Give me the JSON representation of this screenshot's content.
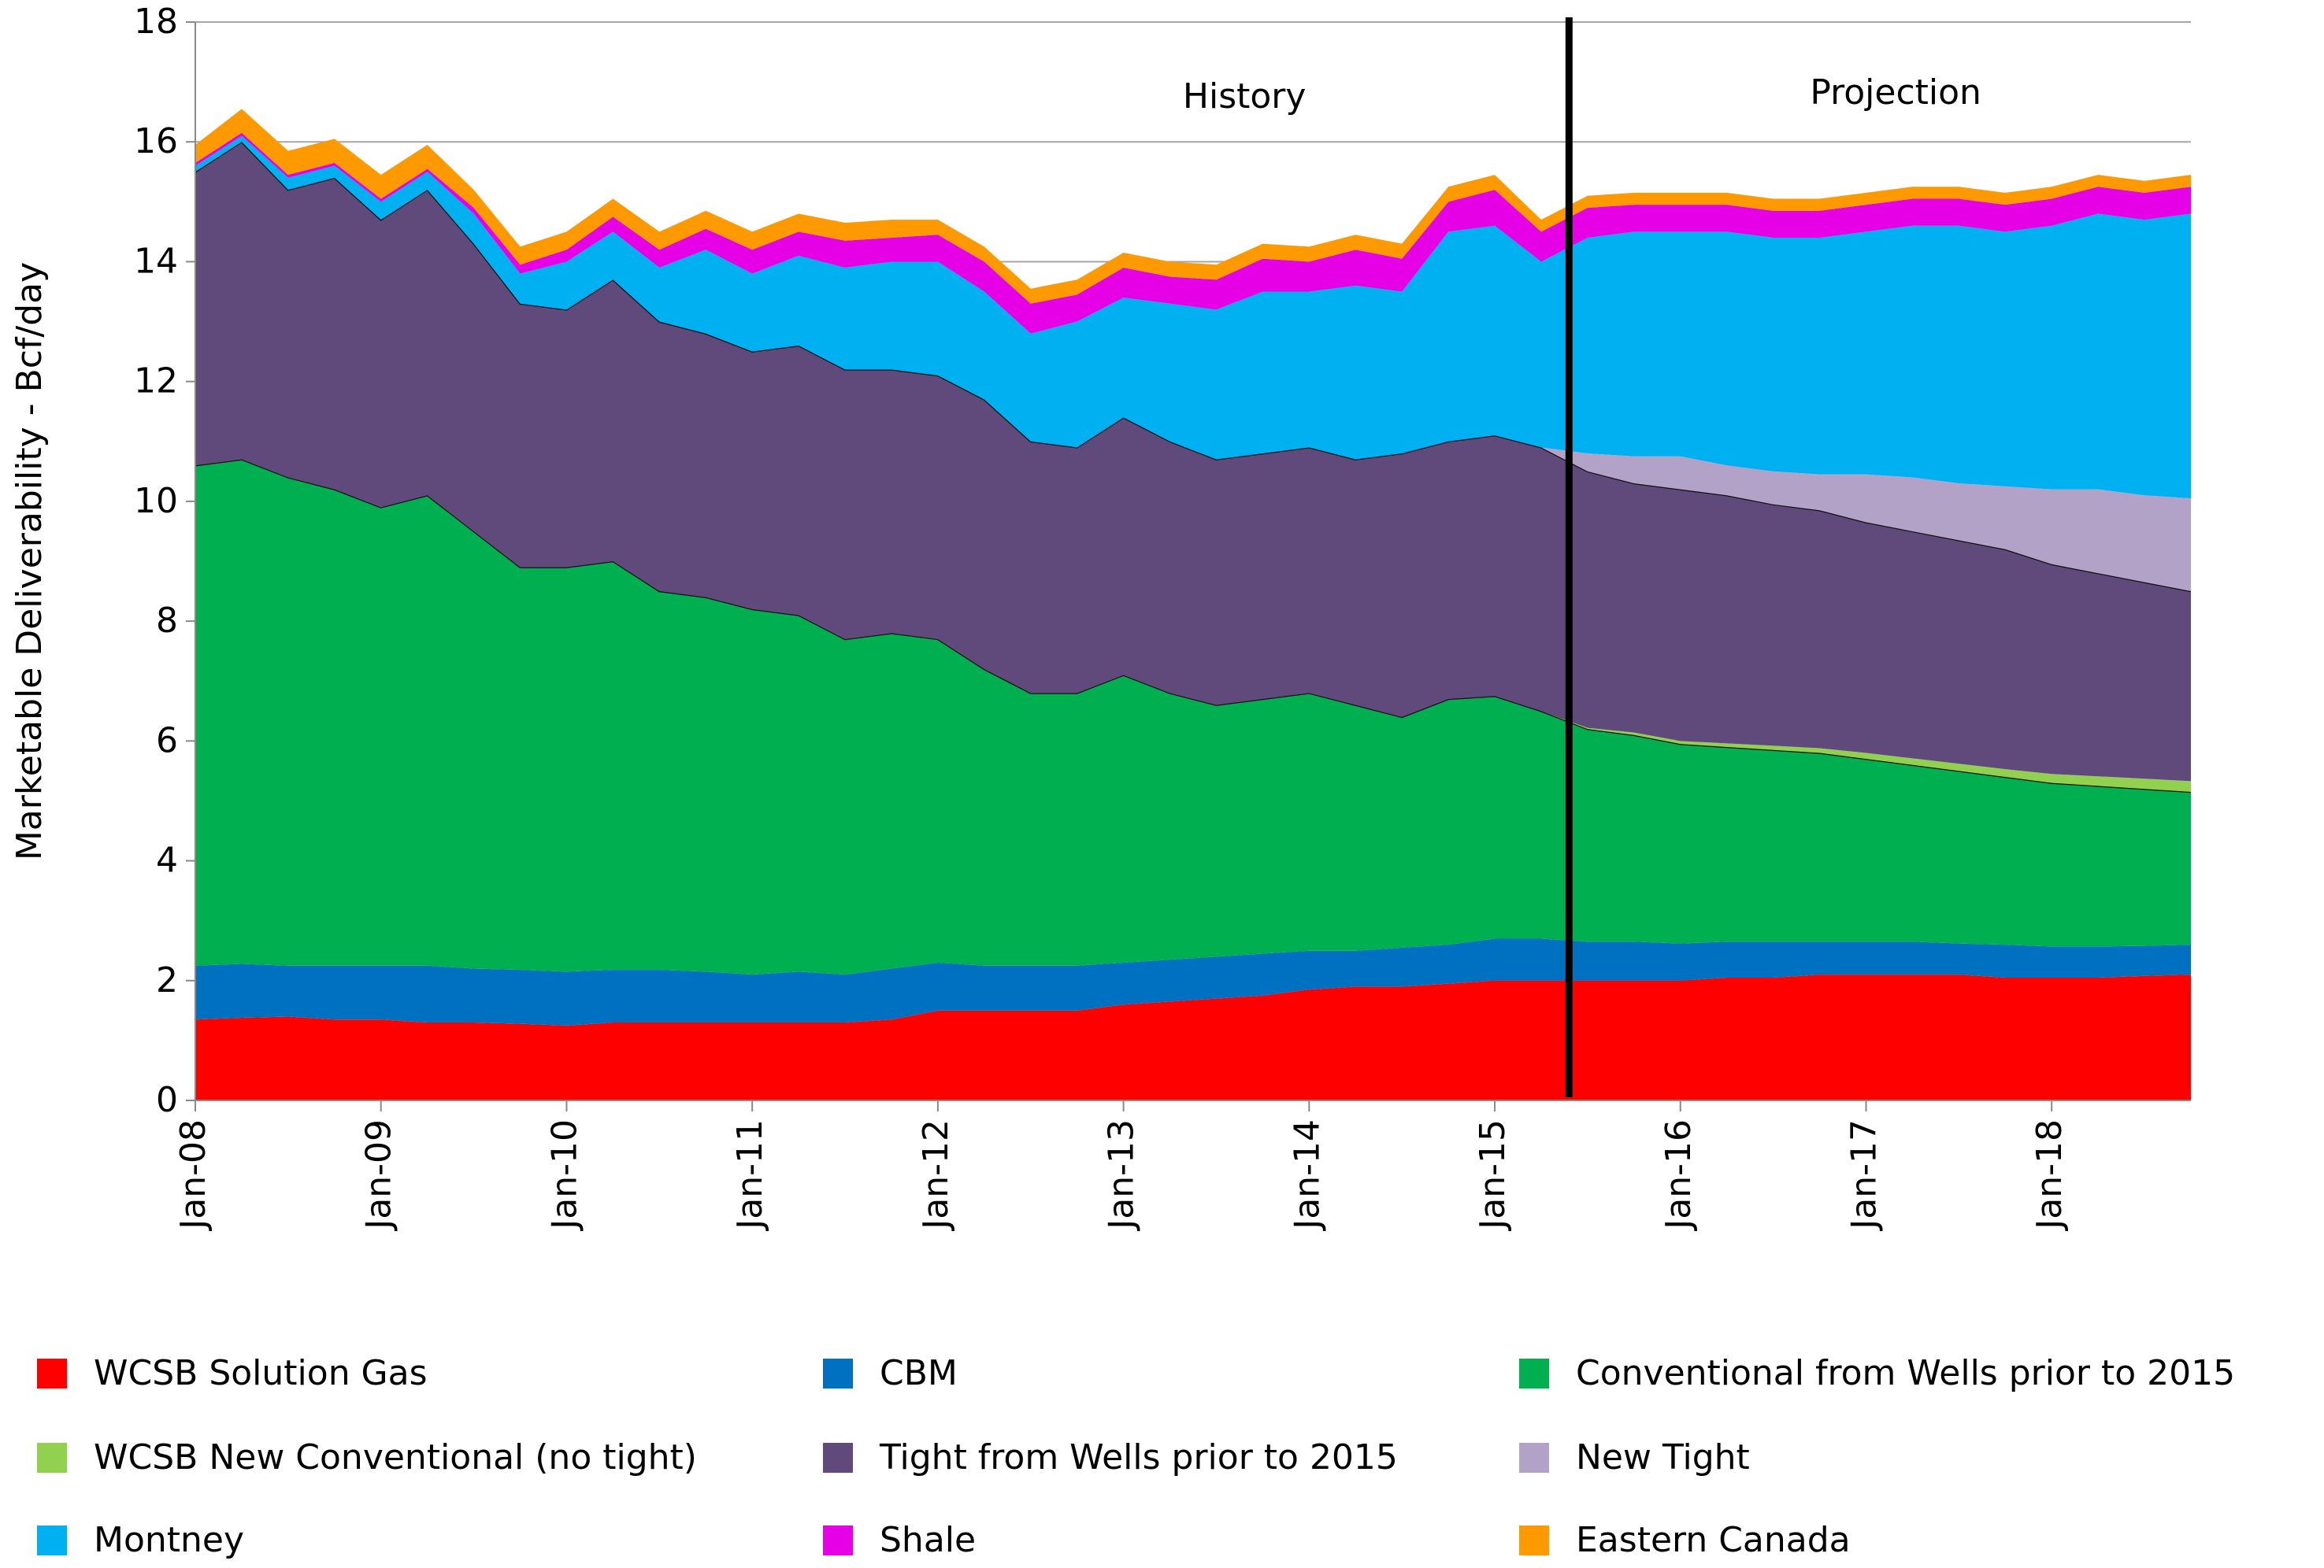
{
  "chart_data": {
    "type": "stacked_area",
    "y_label": "Marketable Deliverability - Bcf/day",
    "annotations": [
      "History",
      "Projection"
    ],
    "categories": [
      "Jan-08",
      null,
      null,
      null,
      "Jan-09",
      null,
      null,
      null,
      "Jan-10",
      null,
      null,
      null,
      "Jan-11",
      null,
      null,
      null,
      "Jan-12",
      null,
      null,
      null,
      "Jan-13",
      null,
      null,
      null,
      "Jan-14",
      null,
      null,
      null,
      "Jan-15",
      null,
      null,
      null,
      "Jan-16",
      null,
      null,
      null,
      "Jan-17",
      null,
      null,
      null,
      "Jan-18",
      null,
      null,
      null
    ],
    "ylim": [
      0,
      18
    ],
    "yticks": [
      0,
      2,
      4,
      6,
      8,
      10,
      12,
      14,
      16,
      18
    ],
    "grid": true,
    "legend": "bottom",
    "series": [
      {
        "name": "WCSB Solution Gas",
        "color": "#ff0000",
        "values": [
          1.35,
          1.38,
          1.4,
          1.35,
          1.35,
          1.3,
          1.3,
          1.28,
          1.25,
          1.3,
          1.3,
          1.3,
          1.3,
          1.3,
          1.3,
          1.35,
          1.5,
          1.5,
          1.5,
          1.5,
          1.6,
          1.65,
          1.7,
          1.75,
          1.85,
          1.9,
          1.9,
          1.95,
          2.0,
          2.0,
          2.0,
          2.0,
          2.0,
          2.05,
          2.05,
          2.1,
          2.1,
          2.1,
          2.1,
          2.05,
          2.05,
          2.05,
          2.08,
          2.1
        ]
      },
      {
        "name": "CBM",
        "color": "#0070c0",
        "values": [
          0.9,
          0.9,
          0.85,
          0.9,
          0.9,
          0.95,
          0.9,
          0.9,
          0.9,
          0.88,
          0.88,
          0.85,
          0.8,
          0.85,
          0.8,
          0.85,
          0.8,
          0.75,
          0.75,
          0.75,
          0.7,
          0.7,
          0.7,
          0.7,
          0.65,
          0.6,
          0.65,
          0.65,
          0.7,
          0.7,
          0.65,
          0.65,
          0.62,
          0.6,
          0.6,
          0.55,
          0.55,
          0.55,
          0.52,
          0.55,
          0.52,
          0.52,
          0.5,
          0.5
        ]
      },
      {
        "name": "Conventional from Wells prior to 2015",
        "color": "#00b050",
        "values": [
          8.35,
          8.42,
          8.15,
          7.95,
          7.65,
          7.85,
          7.3,
          6.72,
          6.75,
          6.82,
          6.32,
          6.25,
          6.1,
          5.95,
          5.6,
          5.6,
          5.4,
          4.95,
          4.55,
          4.55,
          4.8,
          4.45,
          4.2,
          4.25,
          4.3,
          4.1,
          3.85,
          4.1,
          4.05,
          3.8,
          3.55,
          3.45,
          3.33,
          3.25,
          3.2,
          3.15,
          3.05,
          2.95,
          2.88,
          2.8,
          2.73,
          2.68,
          2.62,
          2.55
        ]
      },
      {
        "name": "WCSB New Conventional (no tight)",
        "color": "#92d050",
        "values": [
          0,
          0,
          0,
          0,
          0,
          0,
          0,
          0,
          0,
          0,
          0,
          0,
          0,
          0,
          0,
          0,
          0,
          0,
          0,
          0,
          0,
          0,
          0,
          0,
          0,
          0,
          0,
          0,
          0,
          0,
          0.02,
          0.04,
          0.05,
          0.06,
          0.07,
          0.08,
          0.1,
          0.11,
          0.12,
          0.13,
          0.15,
          0.16,
          0.17,
          0.18
        ]
      },
      {
        "name": "Tight from Wells prior to 2015",
        "color": "#604a7b",
        "values": [
          4.9,
          5.3,
          4.8,
          5.2,
          4.8,
          5.1,
          4.8,
          4.4,
          4.3,
          4.7,
          4.5,
          4.4,
          4.3,
          4.5,
          4.5,
          4.4,
          4.4,
          4.5,
          4.2,
          4.1,
          4.3,
          4.2,
          4.1,
          4.1,
          4.1,
          4.1,
          4.4,
          4.3,
          4.35,
          4.4,
          4.28,
          4.16,
          4.2,
          4.14,
          4.03,
          3.97,
          3.85,
          3.79,
          3.73,
          3.67,
          3.5,
          3.39,
          3.28,
          3.17
        ]
      },
      {
        "name": "New Tight",
        "color": "#b3a2c7",
        "values": [
          0,
          0,
          0,
          0,
          0,
          0,
          0,
          0,
          0,
          0,
          0,
          0,
          0,
          0,
          0,
          0,
          0,
          0,
          0,
          0,
          0,
          0,
          0,
          0,
          0,
          0,
          0,
          0,
          0,
          0,
          0.3,
          0.45,
          0.55,
          0.5,
          0.55,
          0.6,
          0.8,
          0.9,
          0.95,
          1.05,
          1.25,
          1.4,
          1.45,
          1.55
        ]
      },
      {
        "name": "Montney",
        "color": "#00b0f0",
        "values": [
          0.1,
          0.1,
          0.2,
          0.2,
          0.3,
          0.3,
          0.5,
          0.5,
          0.8,
          0.8,
          0.9,
          1.4,
          1.3,
          1.5,
          1.7,
          1.8,
          1.9,
          1.8,
          1.8,
          2.1,
          2.0,
          2.3,
          2.5,
          2.7,
          2.6,
          2.9,
          2.7,
          3.5,
          3.5,
          3.1,
          3.6,
          3.75,
          3.75,
          3.9,
          3.9,
          3.95,
          4.05,
          4.2,
          4.3,
          4.25,
          4.4,
          4.6,
          4.6,
          4.75
        ]
      },
      {
        "name": "Shale",
        "color": "#e600e6",
        "values": [
          0.05,
          0.05,
          0.05,
          0.05,
          0.05,
          0.05,
          0.1,
          0.15,
          0.2,
          0.25,
          0.3,
          0.35,
          0.4,
          0.4,
          0.45,
          0.4,
          0.45,
          0.5,
          0.5,
          0.45,
          0.5,
          0.45,
          0.5,
          0.55,
          0.5,
          0.6,
          0.55,
          0.5,
          0.6,
          0.5,
          0.5,
          0.45,
          0.45,
          0.45,
          0.45,
          0.45,
          0.45,
          0.45,
          0.45,
          0.45,
          0.45,
          0.45,
          0.45,
          0.45
        ]
      },
      {
        "name": "Eastern Canada",
        "color": "#ff9900",
        "values": [
          0.3,
          0.4,
          0.4,
          0.4,
          0.4,
          0.4,
          0.3,
          0.3,
          0.3,
          0.3,
          0.3,
          0.3,
          0.3,
          0.3,
          0.3,
          0.3,
          0.25,
          0.25,
          0.25,
          0.25,
          0.25,
          0.25,
          0.25,
          0.25,
          0.25,
          0.25,
          0.25,
          0.25,
          0.25,
          0.2,
          0.2,
          0.2,
          0.2,
          0.2,
          0.2,
          0.2,
          0.2,
          0.2,
          0.2,
          0.2,
          0.2,
          0.2,
          0.2,
          0.2
        ]
      }
    ]
  }
}
